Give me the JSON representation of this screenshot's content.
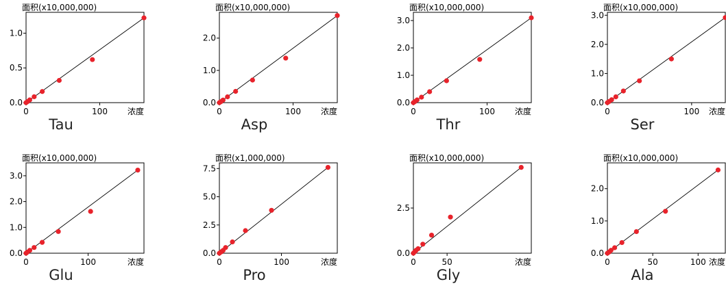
{
  "chart_data": [
    {
      "type": "scatter",
      "title": "Tau",
      "ylabel": "面积(x10,000,000)",
      "xlabel": "浓度",
      "xlim": [
        0,
        160
      ],
      "ylim": [
        0,
        1.3
      ],
      "xticks": [
        {
          "v": 0,
          "label": "0"
        },
        {
          "v": 100,
          "label": "100"
        }
      ],
      "yticks": [
        {
          "v": 0,
          "label": "0.0"
        },
        {
          "v": 0.5,
          "label": "0.5"
        },
        {
          "v": 1.0,
          "label": "1.0"
        }
      ],
      "x": [
        0,
        2,
        5,
        11,
        22,
        45,
        90,
        160
      ],
      "y": [
        0,
        0.015,
        0.04,
        0.085,
        0.16,
        0.32,
        0.62,
        1.22
      ],
      "fit": [
        [
          0,
          0
        ],
        [
          160,
          1.22
        ]
      ]
    },
    {
      "type": "scatter",
      "title": "Asp",
      "ylabel": "面积(x10,000,000)",
      "xlabel": "浓度",
      "xlim": [
        0,
        160
      ],
      "ylim": [
        0,
        2.8
      ],
      "xticks": [
        {
          "v": 0,
          "label": "0"
        },
        {
          "v": 100,
          "label": "100"
        }
      ],
      "yticks": [
        {
          "v": 0,
          "label": "0.0"
        },
        {
          "v": 1.0,
          "label": "1.0"
        },
        {
          "v": 2.0,
          "label": "2.0"
        }
      ],
      "x": [
        0,
        2,
        5,
        11,
        22,
        45,
        90,
        160
      ],
      "y": [
        0,
        0.03,
        0.08,
        0.18,
        0.35,
        0.7,
        1.38,
        2.7
      ],
      "fit": [
        [
          0,
          0
        ],
        [
          160,
          2.7
        ]
      ]
    },
    {
      "type": "scatter",
      "title": "Thr",
      "ylabel": "面积(x10,000,000)",
      "xlabel": "浓度",
      "xlim": [
        0,
        160
      ],
      "ylim": [
        0,
        3.3
      ],
      "xticks": [
        {
          "v": 0,
          "label": "0"
        },
        {
          "v": 100,
          "label": "100"
        }
      ],
      "yticks": [
        {
          "v": 0,
          "label": "0.0"
        },
        {
          "v": 1.0,
          "label": "1.0"
        },
        {
          "v": 2.0,
          "label": "2.0"
        },
        {
          "v": 3.0,
          "label": "3.0"
        }
      ],
      "x": [
        0,
        2,
        5,
        11,
        22,
        45,
        90,
        160
      ],
      "y": [
        0,
        0.04,
        0.1,
        0.2,
        0.4,
        0.8,
        1.58,
        3.1
      ],
      "fit": [
        [
          0,
          0
        ],
        [
          160,
          3.1
        ]
      ]
    },
    {
      "type": "scatter",
      "title": "Ser",
      "ylabel": "面积(x10,000,000)",
      "xlabel": "浓度",
      "xlim": [
        0,
        140
      ],
      "ylim": [
        0,
        3.1
      ],
      "xticks": [
        {
          "v": 0,
          "label": "0"
        },
        {
          "v": 100,
          "label": "100"
        }
      ],
      "yticks": [
        {
          "v": 0,
          "label": "0.0"
        },
        {
          "v": 1.0,
          "label": "1.0"
        },
        {
          "v": 2.0,
          "label": "2.0"
        },
        {
          "v": 3.0,
          "label": "3.0"
        }
      ],
      "x": [
        0,
        2,
        5,
        10,
        19,
        38,
        76,
        140
      ],
      "y": [
        0,
        0.04,
        0.1,
        0.2,
        0.4,
        0.75,
        1.5,
        2.92
      ],
      "fit": [
        [
          0,
          0
        ],
        [
          140,
          2.92
        ]
      ]
    },
    {
      "type": "scatter",
      "title": "Glu",
      "ylabel": "面积(x10,000,000)",
      "xlabel": "浓度",
      "xlim": [
        0,
        190
      ],
      "ylim": [
        0,
        3.5
      ],
      "xticks": [
        {
          "v": 0,
          "label": "0"
        },
        {
          "v": 100,
          "label": "100"
        }
      ],
      "yticks": [
        {
          "v": 0,
          "label": "0.0"
        },
        {
          "v": 1.0,
          "label": "1.0"
        },
        {
          "v": 2.0,
          "label": "2.0"
        },
        {
          "v": 3.0,
          "label": "3.0"
        }
      ],
      "x": [
        0,
        2,
        6,
        13,
        26,
        52,
        104,
        180
      ],
      "y": [
        0,
        0.04,
        0.11,
        0.22,
        0.42,
        0.84,
        1.62,
        3.22
      ],
      "fit": [
        [
          0,
          0
        ],
        [
          180,
          3.22
        ]
      ]
    },
    {
      "type": "scatter",
      "title": "Pro",
      "ylabel": "面积(x1,000,000)",
      "xlabel": "浓度",
      "xlim": [
        0,
        190
      ],
      "ylim": [
        0,
        8.0
      ],
      "xticks": [
        {
          "v": 0,
          "label": "0"
        },
        {
          "v": 100,
          "label": "100"
        }
      ],
      "yticks": [
        {
          "v": 0,
          "label": "0.0"
        },
        {
          "v": 2.5,
          "label": "2.5"
        },
        {
          "v": 5.0,
          "label": "5.0"
        },
        {
          "v": 7.5,
          "label": "7.5"
        }
      ],
      "x": [
        0,
        3,
        6,
        10,
        21,
        42,
        84,
        175
      ],
      "y": [
        0,
        0.12,
        0.25,
        0.5,
        1.0,
        2.0,
        3.8,
        7.6
      ],
      "fit": [
        [
          0,
          0
        ],
        [
          175,
          7.6
        ]
      ]
    },
    {
      "type": "scatter",
      "title": "Gly",
      "ylabel": "面积(x10,000,000)",
      "xlabel": "浓度",
      "xlim": [
        0,
        175
      ],
      "ylim": [
        0,
        5.0
      ],
      "xticks": [
        {
          "v": 0,
          "label": "0"
        },
        {
          "v": 50,
          "label": "50"
        }
      ],
      "yticks": [
        {
          "v": 0,
          "label": "0.0"
        },
        {
          "v": 2.5,
          "label": "2.5"
        }
      ],
      "x": [
        0,
        2,
        4,
        7,
        14,
        27,
        55,
        160
      ],
      "y": [
        0,
        0.08,
        0.16,
        0.25,
        0.5,
        1.0,
        2.0,
        4.75
      ],
      "fit": [
        [
          0,
          0
        ],
        [
          160,
          4.75
        ]
      ]
    },
    {
      "type": "scatter",
      "title": "Ala",
      "ylabel": "面积(x10,000,000)",
      "xlabel": "浓度",
      "xlim": [
        0,
        130
      ],
      "ylim": [
        0,
        2.8
      ],
      "xticks": [
        {
          "v": 0,
          "label": "0"
        },
        {
          "v": 50,
          "label": "50"
        },
        {
          "v": 100,
          "label": "100"
        }
      ],
      "yticks": [
        {
          "v": 0,
          "label": "0.0"
        },
        {
          "v": 1.0,
          "label": "1.0"
        },
        {
          "v": 2.0,
          "label": "2.0"
        }
      ],
      "x": [
        0,
        2,
        4,
        8,
        16,
        32,
        64,
        122
      ],
      "y": [
        0,
        0.04,
        0.09,
        0.17,
        0.33,
        0.67,
        1.3,
        2.58
      ],
      "fit": [
        [
          0,
          0
        ],
        [
          122,
          2.58
        ]
      ]
    }
  ],
  "colors": {
    "point": "#e8232b",
    "axis": "#000000",
    "fit": "#000000"
  }
}
